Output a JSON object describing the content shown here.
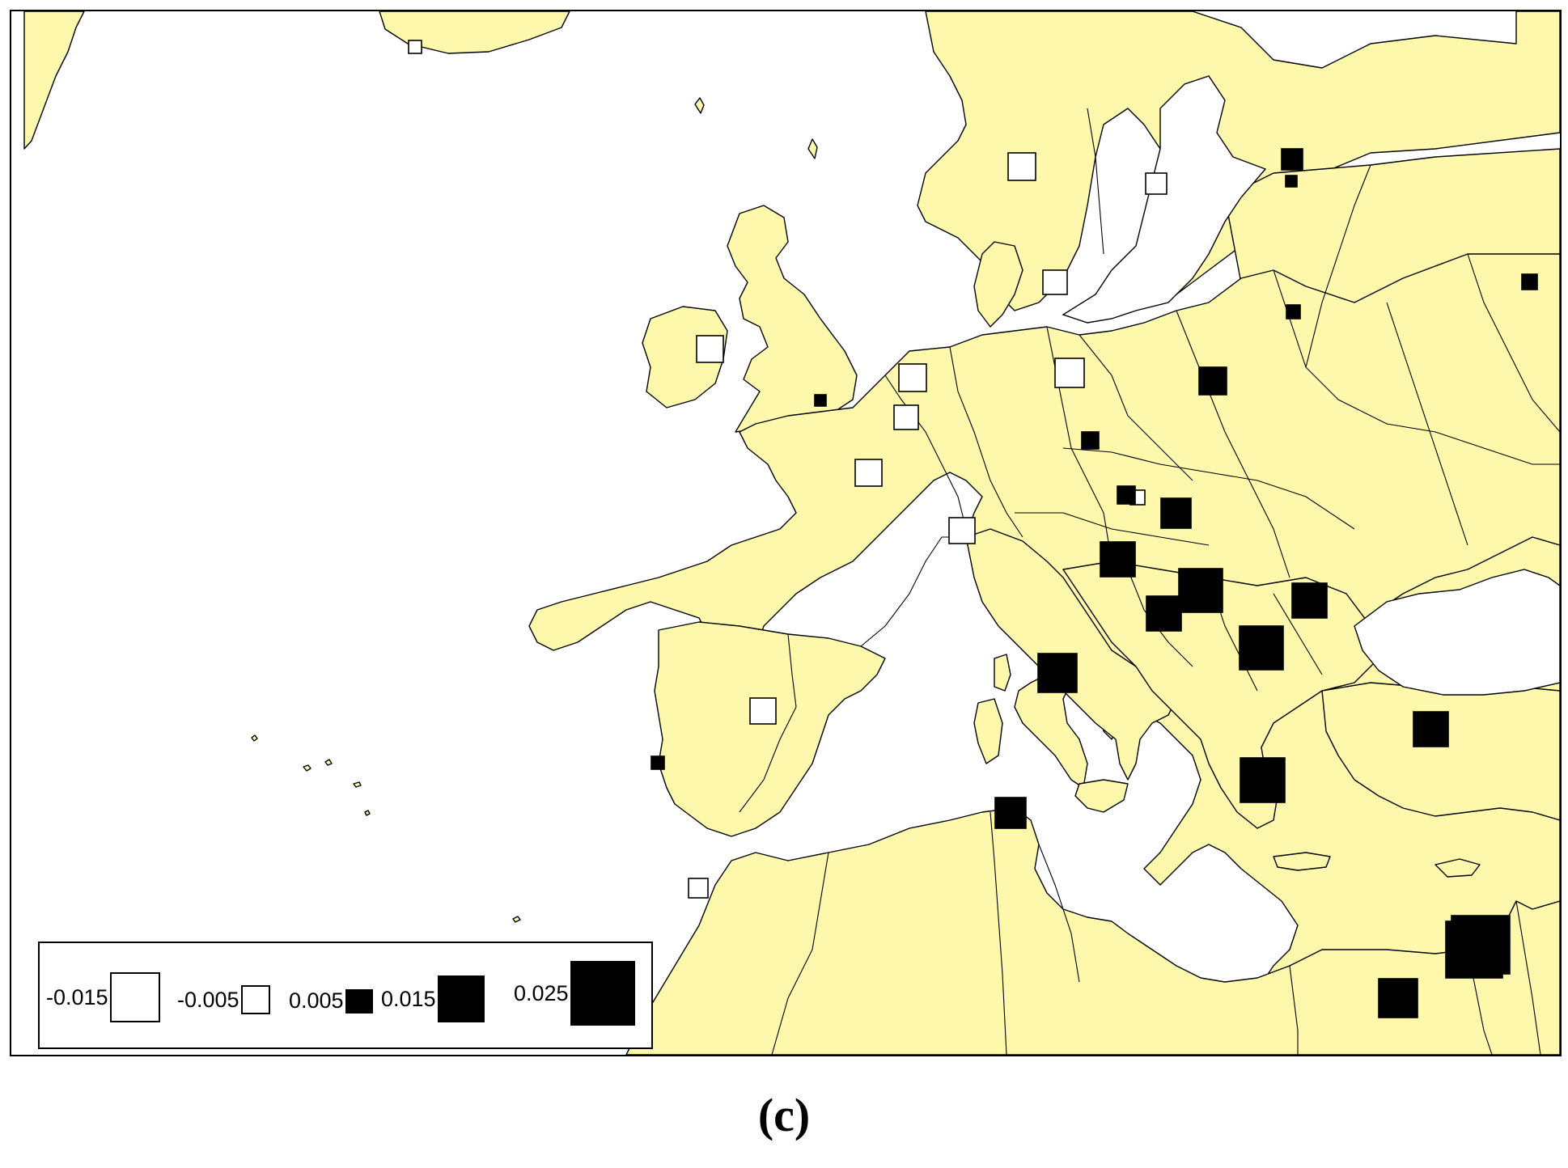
{
  "caption": "(c)",
  "map": {
    "land_color": "#fdf8ac",
    "water_color": "#ffffff",
    "border_color": "#000000",
    "negative_marker_color": "#ffffff",
    "positive_marker_color": "#000000"
  },
  "legend": {
    "items": [
      {
        "label": "-0.015",
        "value": -0.015,
        "sign": "neg"
      },
      {
        "label": "-0.005",
        "value": -0.005,
        "sign": "neg"
      },
      {
        "label": "0.005",
        "value": 0.005,
        "sign": "pos"
      },
      {
        "label": "0.015",
        "value": 0.015,
        "sign": "pos"
      },
      {
        "label": "0.025",
        "value": 0.025,
        "sign": "pos"
      }
    ]
  }
}
